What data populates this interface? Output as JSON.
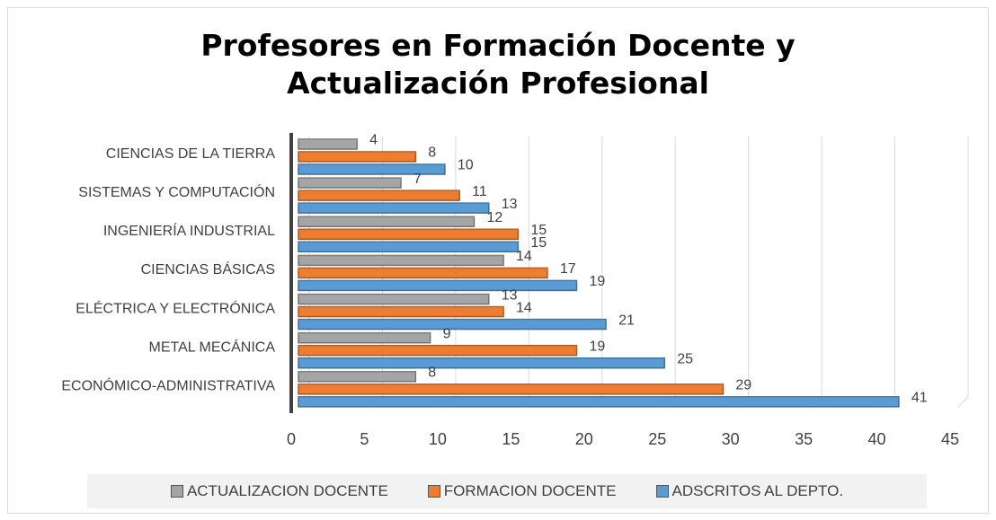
{
  "chart_data": {
    "type": "hbar",
    "title": "Profesores en Formación Docente y Actualización Profesional",
    "categories": [
      "CIENCIAS DE LA TIERRA",
      "SISTEMAS Y COMPUTACIÓN",
      "INGENIERÍA INDUSTRIAL",
      "CIENCIAS BÁSICAS",
      "ELÉCTRICA Y ELECTRÓNICA",
      "METAL MECÁNICA",
      "ECONÓMICO-ADMINISTRATIVA"
    ],
    "series": [
      {
        "name": "ACTUALIZACION DOCENTE",
        "color": "#a5a5a5",
        "values": [
          4,
          7,
          12,
          14,
          13,
          9,
          8
        ]
      },
      {
        "name": "FORMACION DOCENTE",
        "color": "#ed7d31",
        "values": [
          8,
          11,
          15,
          17,
          14,
          19,
          29
        ]
      },
      {
        "name": "ADSCRITOS AL DEPTO.",
        "color": "#5b9bd5",
        "values": [
          10,
          13,
          15,
          19,
          21,
          25,
          41
        ]
      }
    ],
    "xlim": [
      0,
      45
    ],
    "xticks": [
      0,
      5,
      10,
      15,
      20,
      25,
      30,
      35,
      40,
      45
    ],
    "grid": true,
    "legend": "bottom"
  }
}
